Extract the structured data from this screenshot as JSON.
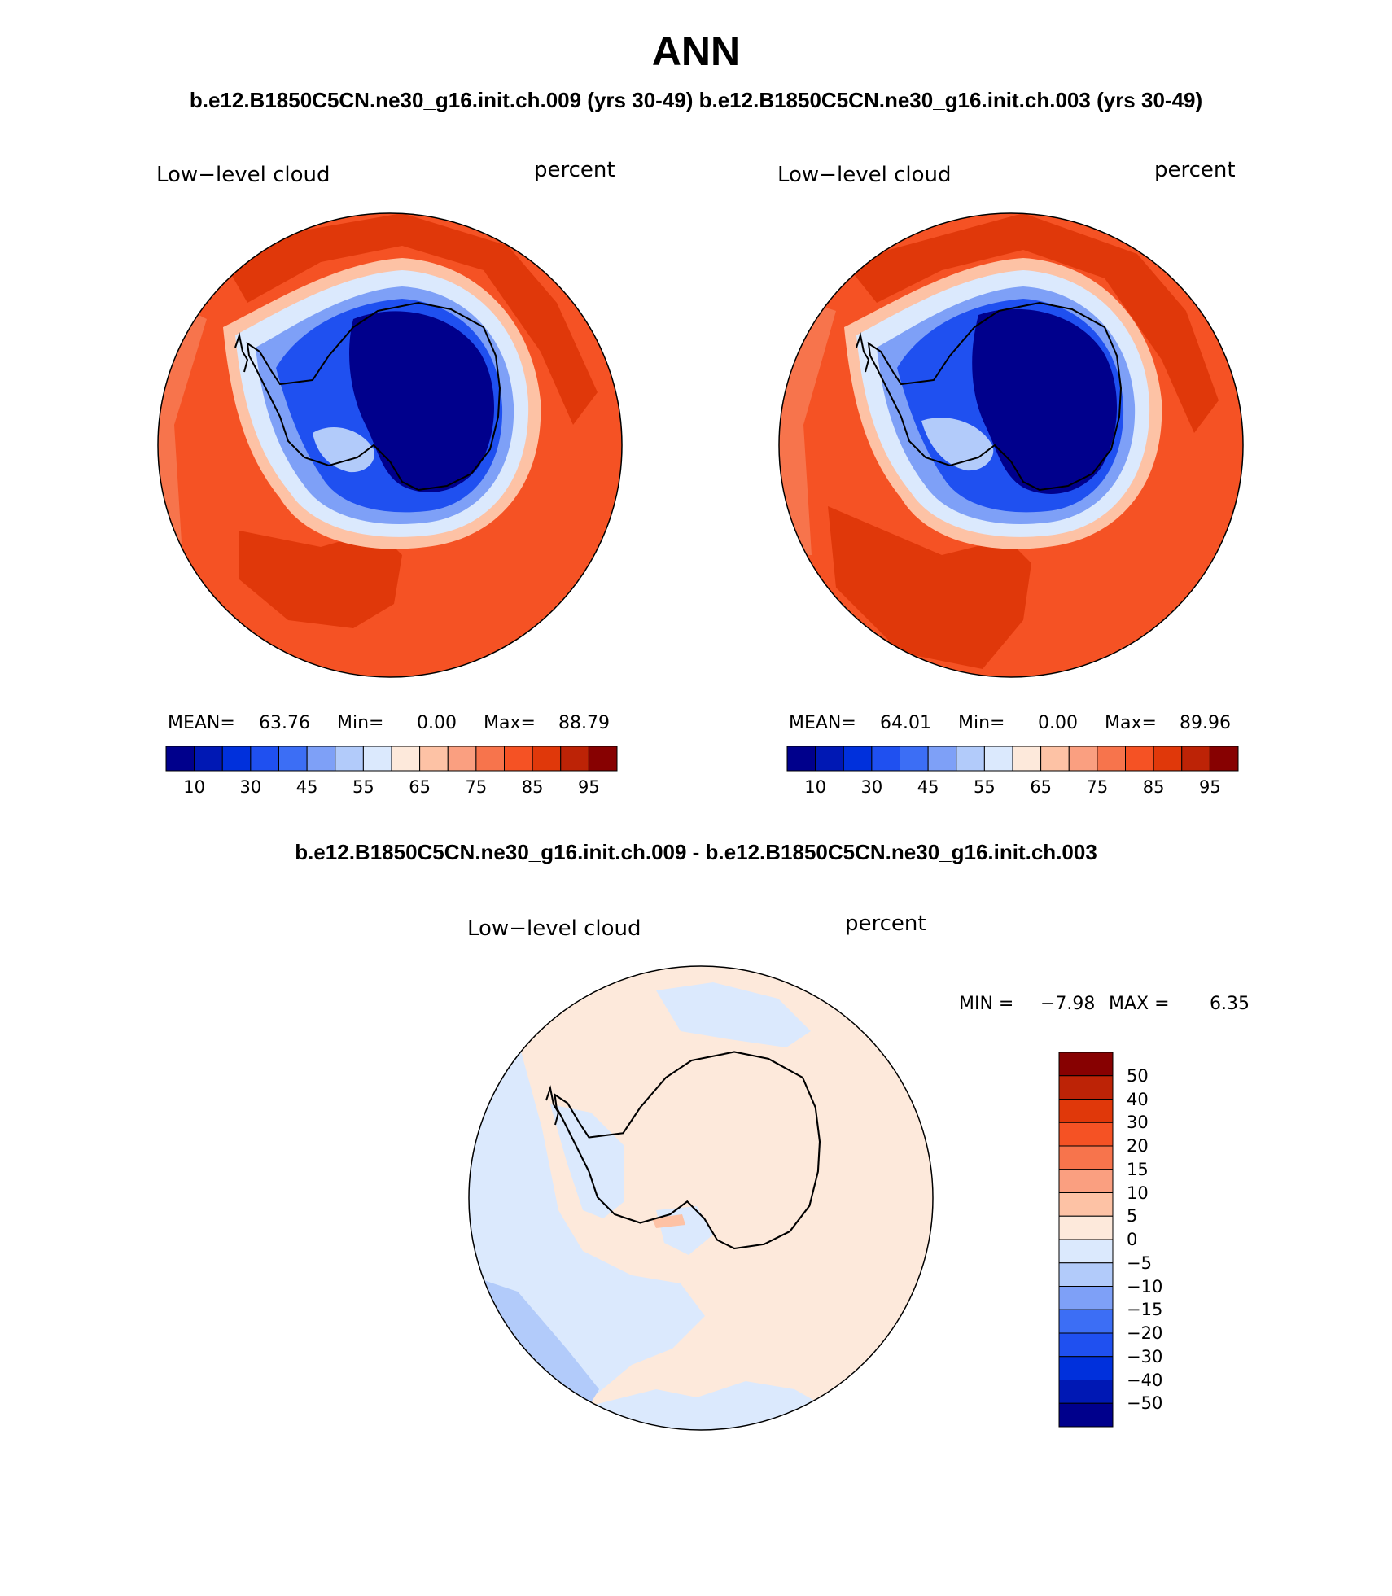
{
  "title": "ANN",
  "subtitle": "b.e12.B1850C5CN.ne30_g16.init.ch.009 (yrs 30-49)  b.e12.B1850C5CN.ne30_g16.init.ch.003 (yrs 30-49)",
  "diff_title": "b.e12.B1850C5CN.ne30_g16.init.ch.009 - b.e12.B1850C5CN.ne30_g16.init.ch.003",
  "panels": [
    {
      "variable": "Low−level cloud",
      "units": "percent",
      "mean_label": "MEAN=",
      "mean": "63.76",
      "min_label": "Min=",
      "min": "0.00",
      "max_label": "Max=",
      "max": "88.79"
    },
    {
      "variable": "Low−level cloud",
      "units": "percent",
      "mean_label": "MEAN=",
      "mean": "64.01",
      "min_label": "Min=",
      "min": "0.00",
      "max_label": "Max=",
      "max": "89.96"
    }
  ],
  "diff": {
    "variable": "Low−level cloud",
    "units": "percent",
    "min_label": "MIN =",
    "min": "−7.98",
    "max_label": "MAX =",
    "max": "6.35"
  },
  "colorbar": {
    "colors": [
      "#00008c",
      "#0018b4",
      "#0030dc",
      "#1f50f0",
      "#3c6ef5",
      "#7ea0f7",
      "#b2cbfa",
      "#dbe9fd",
      "#fde9db",
      "#fdc2a5",
      "#fa9f80",
      "#f7744c",
      "#f55224",
      "#e0380a",
      "#bd2306",
      "#870101"
    ],
    "tick_labels": [
      "10",
      "30",
      "45",
      "55",
      "65",
      "75",
      "85",
      "95"
    ]
  },
  "diff_colorbar": {
    "colors_top_to_bottom": [
      "#870101",
      "#bd2306",
      "#e0380a",
      "#f55224",
      "#f7744c",
      "#fa9f80",
      "#fdc2a5",
      "#fde9db",
      "#dbe9fd",
      "#b2cbfa",
      "#7ea0f7",
      "#3c6ef5",
      "#1f50f0",
      "#0030dc",
      "#0018b4",
      "#00008c"
    ],
    "tick_labels": [
      "50",
      "40",
      "30",
      "20",
      "15",
      "10",
      "5",
      "0",
      "−5",
      "−10",
      "−15",
      "−20",
      "−30",
      "−40",
      "−50"
    ]
  }
}
